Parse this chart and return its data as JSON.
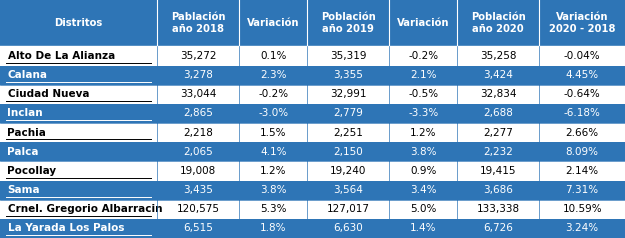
{
  "header": [
    "Distritos",
    "Pablación\naño 2018",
    "Variación",
    "Población\naño 2019",
    "Variación",
    "Población\naño 2020",
    "Variación\n2020 - 2018"
  ],
  "rows": [
    [
      "Alto De La Alianza",
      "35,272",
      "0.1%",
      "35,319",
      "-0.2%",
      "35,258",
      "-0.04%"
    ],
    [
      "Calana",
      "3,278",
      "2.3%",
      "3,355",
      "2.1%",
      "3,424",
      "4.45%"
    ],
    [
      "Ciudad Nueva",
      "33,044",
      "-0.2%",
      "32,991",
      "-0.5%",
      "32,834",
      "-0.64%"
    ],
    [
      "Inclan",
      "2,865",
      "-3.0%",
      "2,779",
      "-3.3%",
      "2,688",
      "-6.18%"
    ],
    [
      "Pachia",
      "2,218",
      "1.5%",
      "2,251",
      "1.2%",
      "2,277",
      "2.66%"
    ],
    [
      "Palca",
      "2,065",
      "4.1%",
      "2,150",
      "3.8%",
      "2,232",
      "8.09%"
    ],
    [
      "Pocollay",
      "19,008",
      "1.2%",
      "19,240",
      "0.9%",
      "19,415",
      "2.14%"
    ],
    [
      "Sama",
      "3,435",
      "3.8%",
      "3,564",
      "3.4%",
      "3,686",
      "7.31%"
    ],
    [
      "Crnel. Gregorio Albarracin",
      "120,575",
      "5.3%",
      "127,017",
      "5.0%",
      "133,338",
      "10.59%"
    ],
    [
      "La Yarada Los Palos",
      "6,515",
      "1.8%",
      "6,630",
      "1.4%",
      "6,726",
      "3.24%"
    ]
  ],
  "header_bg": "#2E75B6",
  "header_fg": "#FFFFFF",
  "row_bg_blue": "#2E75B6",
  "row_bg_white": "#FFFFFF",
  "row_fg_blue": "#FFFFFF",
  "row_fg_black": "#000000",
  "border_color": "#2E75B6",
  "col_widths_ratio": [
    2.2,
    1.15,
    0.95,
    1.15,
    0.95,
    1.15,
    1.2
  ],
  "underlined_districts": [
    "Alto De La Alianza",
    "Calana",
    "Ciudad Nueva",
    "Inclan",
    "Pachia",
    "Pocollay",
    "Sama",
    "Crnel. Gregorio Albarracin",
    "La Yarada Los Palos"
  ],
  "header_fontsize": 7.2,
  "row_fontsize": 7.5
}
